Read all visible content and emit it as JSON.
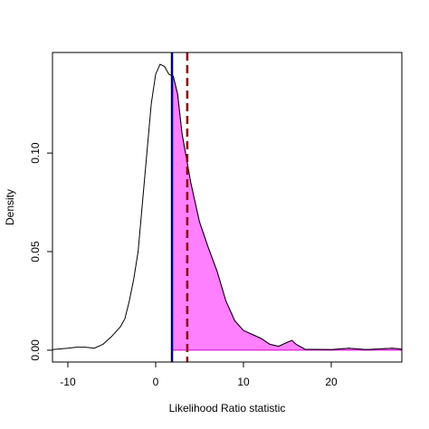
{
  "chart_data": {
    "type": "density",
    "xlabel": "Likelihood Ratio statistic",
    "ylabel": "Density",
    "x": [
      -11.75,
      -10,
      -9,
      -8,
      -7,
      -6,
      -5,
      -4,
      -3.5,
      -3,
      -2.5,
      -2,
      -1.5,
      -1,
      -0.5,
      0,
      0.5,
      1,
      1.5,
      2,
      2.5,
      3,
      4,
      5,
      6,
      7,
      8,
      9,
      10,
      11,
      12,
      13,
      14,
      15,
      15.5,
      16,
      17,
      20,
      22,
      24,
      27,
      28.04
    ],
    "values": [
      0.0003,
      0.001,
      0.0015,
      0.0015,
      0.001,
      0.003,
      0.007,
      0.012,
      0.016,
      0.025,
      0.036,
      0.05,
      0.075,
      0.1,
      0.125,
      0.14,
      0.145,
      0.144,
      0.14,
      0.139,
      0.13,
      0.11,
      0.085,
      0.065,
      0.052,
      0.04,
      0.025,
      0.015,
      0.01,
      0.008,
      0.006,
      0.003,
      0.002,
      0.004,
      0.005,
      0.003,
      0.0005,
      0.0003,
      0.001,
      0.0003,
      0.001,
      0.0005
    ],
    "color": "#000000",
    "shade_from": 1.86,
    "shade_color": "#ff80ff",
    "shade_border": "#cc00cc",
    "observed": 1.86,
    "observed_color": "#00008b",
    "critical": 3.6,
    "critical_color": "#8b0000",
    "xlim": [
      -11.75,
      28.04
    ],
    "ylim": [
      -0.006,
      0.151
    ],
    "xticks": [
      -10,
      0,
      10,
      20
    ],
    "yticks": [
      {
        "value": 0,
        "label": "0.00"
      },
      {
        "value": 0.05,
        "label": "0.05"
      },
      {
        "value": 0.1,
        "label": "0.10"
      }
    ]
  }
}
